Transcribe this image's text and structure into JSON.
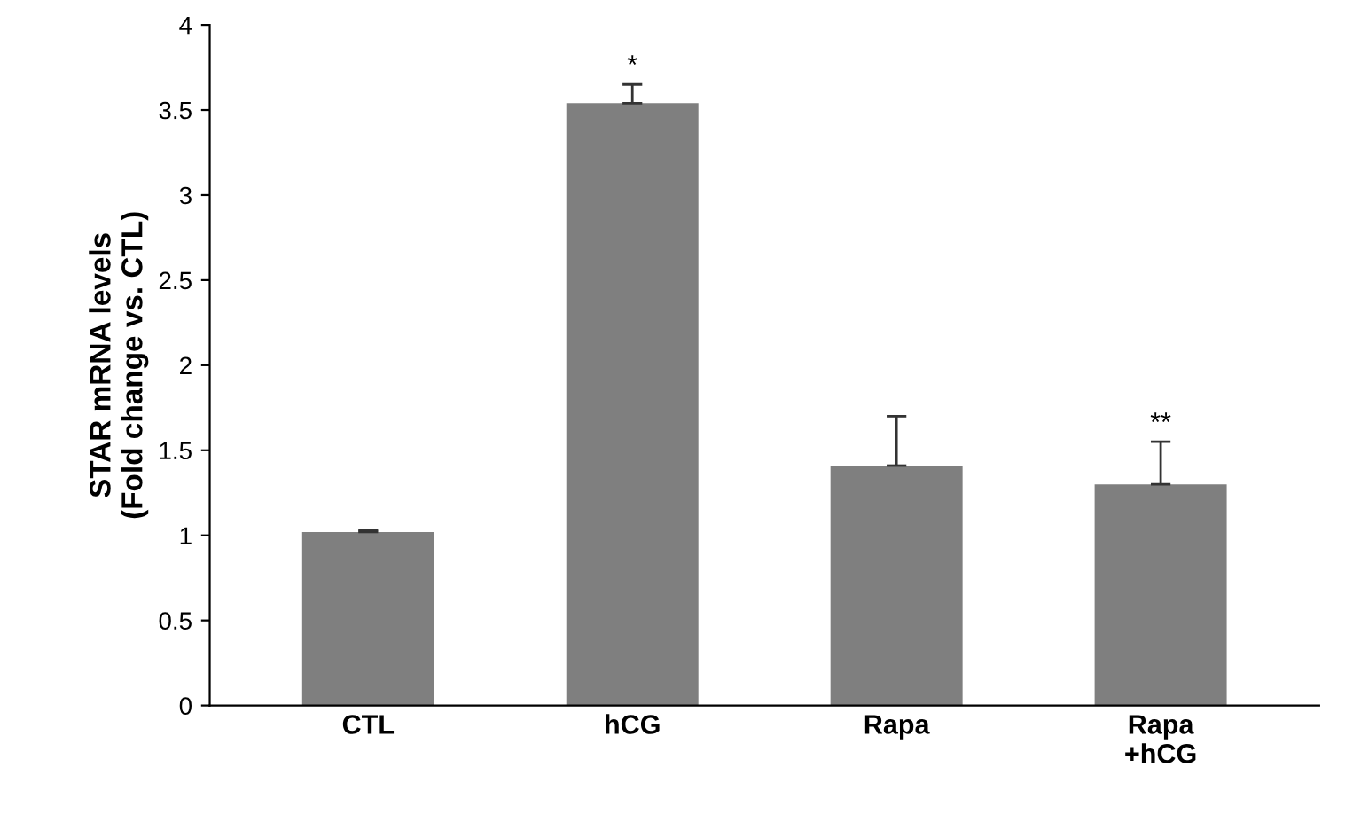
{
  "chart_data": {
    "type": "bar",
    "ylabel": "STAR mRNA levels\n(Fold change vs. CTL)",
    "categories": [
      "CTL",
      "hCG",
      "Rapa",
      "Rapa\n+hCG"
    ],
    "values": [
      1.02,
      3.54,
      1.41,
      1.3
    ],
    "errors": [
      0.01,
      0.11,
      0.29,
      0.25
    ],
    "color": "#7f7f7f",
    "ylim": [
      0,
      4
    ],
    "yticks": [
      0,
      0.5,
      1,
      1.5,
      2,
      2.5,
      3,
      3.5,
      4
    ],
    "annotations": [
      {
        "text": "*",
        "x": "hCG",
        "y": 3.65
      },
      {
        "text": "**",
        "x": "Rapa\n+hCG",
        "y": 1.55
      }
    ],
    "grid": false
  }
}
